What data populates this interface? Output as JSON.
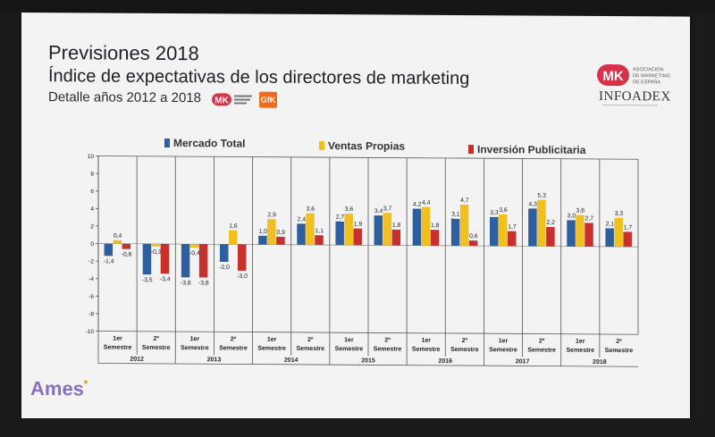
{
  "slide": {
    "title": "Previsiones 2018",
    "subtitle": "Índice de expectativas de los directores de marketing",
    "detail": "Detalle años 2012 a 2018",
    "logos": {
      "mk_text": "MK",
      "mk_caption": "ASOCIACIÓN DE MARKETING DE ESPAÑA",
      "infoadex": "INFOADEX",
      "gfk": "GfK",
      "ames": "Ames"
    }
  },
  "colors": {
    "mercado": "#2d5f9e",
    "ventas": "#f0c020",
    "inversion": "#c8302c",
    "mk_red": "#d6334a"
  },
  "chart_data": {
    "type": "bar",
    "title": "",
    "ylim": [
      -10,
      10
    ],
    "yticks": [
      10,
      8,
      6,
      4,
      2,
      0,
      -2,
      -4,
      -6,
      -8,
      -10
    ],
    "grid": false,
    "legend_position": "top",
    "categories": [
      {
        "period": [
          "1er",
          "Semestre"
        ],
        "year": "2012"
      },
      {
        "period": [
          "2º",
          "Semestre"
        ],
        "year": "2012"
      },
      {
        "period": [
          "1er",
          "Semestre"
        ],
        "year": "2013"
      },
      {
        "period": [
          "2º",
          "Semestre"
        ],
        "year": "2013"
      },
      {
        "period": [
          "1er",
          "Semestre"
        ],
        "year": "2014"
      },
      {
        "period": [
          "2º",
          "Semestre"
        ],
        "year": "2014"
      },
      {
        "period": [
          "1er",
          "Semestre"
        ],
        "year": "2015"
      },
      {
        "period": [
          "2º",
          "Semestre"
        ],
        "year": "2015"
      },
      {
        "period": [
          "1er",
          "Semestre"
        ],
        "year": "2016"
      },
      {
        "period": [
          "2º",
          "Semestre"
        ],
        "year": "2016"
      },
      {
        "period": [
          "1er",
          "Semestre"
        ],
        "year": "2017"
      },
      {
        "period": [
          "2º",
          "Semestre"
        ],
        "year": "2017"
      },
      {
        "period": [
          "1er",
          "Semestre"
        ],
        "year": "2018"
      },
      {
        "period": [
          "2º",
          "Semestre"
        ],
        "year": "2018"
      }
    ],
    "years": [
      "2012",
      "2013",
      "2014",
      "2015",
      "2016",
      "2017",
      "2018"
    ],
    "series": [
      {
        "name": "Mercado Total",
        "values": [
          -1.4,
          -3.5,
          -3.8,
          -2.0,
          1.0,
          2.4,
          2.7,
          3.4,
          4.2,
          3.1,
          3.3,
          4.3,
          3.0,
          2.1
        ],
        "labels": [
          "-1,4",
          "-3,5",
          "-3,8",
          "-2,0",
          "1,0",
          "2,4",
          "2,7",
          "3,4",
          "4,2",
          "3,1",
          "3,3",
          "4,3",
          "3,0",
          "2,1"
        ]
      },
      {
        "name": "Ventas Propias",
        "values": [
          0.4,
          -0.3,
          -0.4,
          1.6,
          2.9,
          3.6,
          3.6,
          3.7,
          4.4,
          4.7,
          3.6,
          5.3,
          3.6,
          3.3
        ],
        "labels": [
          "0,4",
          "-0,3",
          "-0,4",
          "1,6",
          "2,9",
          "3,6",
          "3,6",
          "3,7",
          "4,4",
          "4,7",
          "3,6",
          "5,3",
          "3,6",
          "3,3"
        ]
      },
      {
        "name": "Inversión Publicitaria",
        "values": [
          -0.6,
          -3.4,
          -3.8,
          -3.0,
          0.9,
          1.1,
          1.9,
          1.8,
          1.8,
          0.6,
          1.7,
          2.2,
          2.7,
          1.7
        ],
        "labels": [
          "-0,6",
          "-3,4",
          "-3,8",
          "-3,0",
          "0,9",
          "1,1",
          "1,9",
          "1,8",
          "1,8",
          "0,6",
          "1,7",
          "2,2",
          "2,7",
          "1,7"
        ]
      }
    ]
  }
}
